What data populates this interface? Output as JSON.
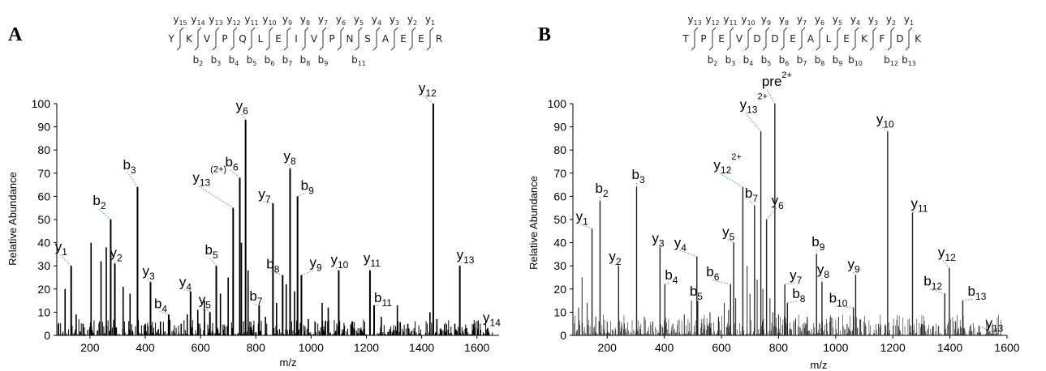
{
  "chart_data": [
    {
      "panel": "A",
      "type": "bar",
      "sequence": [
        "Y",
        "K",
        "V",
        "P",
        "Q",
        "L",
        "E",
        "I",
        "V",
        "P",
        "N",
        "S",
        "A",
        "E",
        "E",
        "R"
      ],
      "y_ions": [
        "y15",
        "y14",
        "y13",
        "y12",
        "y11",
        "y10",
        "y9",
        "y8",
        "y7",
        "y6",
        "y5",
        "y4",
        "y3",
        "y2",
        "y1"
      ],
      "b_ions": [
        "b2",
        "b3",
        "b4",
        "b5",
        "b6",
        "b7",
        "b8",
        "b9",
        "b11"
      ],
      "xlabel": "m/z",
      "ylabel": "Relative Abundance",
      "xlim": [
        80,
        1680
      ],
      "ylim": [
        0,
        100
      ],
      "xticks": [
        200,
        400,
        600,
        800,
        1000,
        1200,
        1400,
        1600
      ],
      "yticks": [
        0,
        10,
        20,
        30,
        40,
        50,
        60,
        70,
        80,
        90,
        100
      ],
      "annotated_peaks": [
        {
          "label": "y1",
          "mz": 132,
          "intensity": 30
        },
        {
          "label": "b2",
          "mz": 275,
          "intensity": 50
        },
        {
          "label": "y2",
          "mz": 290,
          "intensity": 31
        },
        {
          "label": "b3",
          "mz": 372,
          "intensity": 64
        },
        {
          "label": "y3",
          "mz": 419,
          "intensity": 23
        },
        {
          "label": "b4",
          "mz": 485,
          "intensity": 9
        },
        {
          "label": "y4",
          "mz": 564,
          "intensity": 19
        },
        {
          "label": "y5",
          "mz": 634,
          "intensity": 10
        },
        {
          "label": "b5",
          "mz": 657,
          "intensity": 30
        },
        {
          "label": "y13 (2+)",
          "mz": 718,
          "intensity": 55
        },
        {
          "label": "b6",
          "mz": 742,
          "intensity": 68
        },
        {
          "label": "y6",
          "mz": 763,
          "intensity": 93
        },
        {
          "label": "b7",
          "mz": 812,
          "intensity": 13
        },
        {
          "label": "y7",
          "mz": 862,
          "intensity": 57
        },
        {
          "label": "b8",
          "mz": 897,
          "intensity": 26
        },
        {
          "label": "y8",
          "mz": 924,
          "intensity": 72
        },
        {
          "label": "b9",
          "mz": 951,
          "intensity": 60
        },
        {
          "label": "y9",
          "mz": 965,
          "intensity": 26
        },
        {
          "label": "y10",
          "mz": 1100,
          "intensity": 28
        },
        {
          "label": "y11",
          "mz": 1213,
          "intensity": 28
        },
        {
          "label": "b11",
          "mz": 1228,
          "intensity": 13
        },
        {
          "label": "y12",
          "mz": 1442,
          "intensity": 100
        },
        {
          "label": "y13",
          "mz": 1538,
          "intensity": 30
        },
        {
          "label": "y14",
          "mz": 1639,
          "intensity": 3
        }
      ],
      "background_peaks": [
        {
          "mz": 110,
          "intensity": 20
        },
        {
          "mz": 150,
          "intensity": 9
        },
        {
          "mz": 175,
          "intensity": 5
        },
        {
          "mz": 204,
          "intensity": 40
        },
        {
          "mz": 240,
          "intensity": 32
        },
        {
          "mz": 259,
          "intensity": 38
        },
        {
          "mz": 320,
          "intensity": 21
        },
        {
          "mz": 345,
          "intensity": 18
        },
        {
          "mz": 400,
          "intensity": 5
        },
        {
          "mz": 455,
          "intensity": 6
        },
        {
          "mz": 530,
          "intensity": 5
        },
        {
          "mz": 552,
          "intensity": 9
        },
        {
          "mz": 590,
          "intensity": 11
        },
        {
          "mz": 614,
          "intensity": 15
        },
        {
          "mz": 672,
          "intensity": 18
        },
        {
          "mz": 700,
          "intensity": 25
        },
        {
          "mz": 748,
          "intensity": 40
        },
        {
          "mz": 772,
          "intensity": 28
        },
        {
          "mz": 835,
          "intensity": 8
        },
        {
          "mz": 875,
          "intensity": 14
        },
        {
          "mz": 910,
          "intensity": 22
        },
        {
          "mz": 940,
          "intensity": 19
        },
        {
          "mz": 990,
          "intensity": 7
        },
        {
          "mz": 1040,
          "intensity": 14
        },
        {
          "mz": 1062,
          "intensity": 12
        },
        {
          "mz": 1150,
          "intensity": 6
        },
        {
          "mz": 1254,
          "intensity": 8
        },
        {
          "mz": 1312,
          "intensity": 13
        },
        {
          "mz": 1350,
          "intensity": 5
        },
        {
          "mz": 1430,
          "intensity": 10
        },
        {
          "mz": 1455,
          "intensity": 7
        },
        {
          "mz": 1520,
          "intensity": 5
        },
        {
          "mz": 1560,
          "intensity": 3
        }
      ]
    },
    {
      "panel": "B",
      "type": "bar",
      "sequence": [
        "T",
        "P",
        "E",
        "V",
        "D",
        "D",
        "E",
        "A",
        "L",
        "E",
        "K",
        "F",
        "D",
        "K"
      ],
      "y_ions": [
        "y13",
        "y12",
        "y11",
        "y10",
        "y9",
        "y8",
        "y7",
        "y6",
        "y5",
        "y4",
        "y3",
        "y2",
        "y1"
      ],
      "b_ions": [
        "b2",
        "b3",
        "b4",
        "b5",
        "b6",
        "b7",
        "b8",
        "b9",
        "b10",
        "b12",
        "b13"
      ],
      "xlabel": "m/z",
      "ylabel": "Relative Abundance",
      "xlim": [
        80,
        1600
      ],
      "ylim": [
        0,
        100
      ],
      "xticks": [
        200,
        400,
        600,
        800,
        1000,
        1200,
        1400,
        1600
      ],
      "yticks": [
        0,
        10,
        20,
        30,
        40,
        50,
        60,
        70,
        80,
        90,
        100
      ],
      "annotated_peaks": [
        {
          "label": "y1",
          "mz": 147,
          "intensity": 46
        },
        {
          "label": "b2",
          "mz": 175,
          "intensity": 58
        },
        {
          "label": "y2",
          "mz": 240,
          "intensity": 30
        },
        {
          "label": "b3",
          "mz": 303,
          "intensity": 64
        },
        {
          "label": "y3",
          "mz": 385,
          "intensity": 38
        },
        {
          "label": "b4",
          "mz": 402,
          "intensity": 22
        },
        {
          "label": "y4",
          "mz": 514,
          "intensity": 34
        },
        {
          "label": "b5",
          "mz": 517,
          "intensity": 15
        },
        {
          "label": "b6",
          "mz": 632,
          "intensity": 22
        },
        {
          "label": "y5",
          "mz": 643,
          "intensity": 40
        },
        {
          "label": "y12 2+",
          "mz": 675,
          "intensity": 64
        },
        {
          "label": "b7",
          "mz": 716,
          "intensity": 56
        },
        {
          "label": "y13 2+",
          "mz": 738,
          "intensity": 88
        },
        {
          "label": "y6",
          "mz": 758,
          "intensity": 50
        },
        {
          "label": "pre 2+",
          "mz": 787,
          "intensity": 100
        },
        {
          "label": "y7",
          "mz": 822,
          "intensity": 22
        },
        {
          "label": "b8",
          "mz": 831,
          "intensity": 14
        },
        {
          "label": "b9",
          "mz": 933,
          "intensity": 35
        },
        {
          "label": "y8",
          "mz": 952,
          "intensity": 23
        },
        {
          "label": "b10",
          "mz": 1062,
          "intensity": 12
        },
        {
          "label": "y9",
          "mz": 1070,
          "intensity": 26
        },
        {
          "label": "y10",
          "mz": 1182,
          "intensity": 88
        },
        {
          "label": "y11",
          "mz": 1269,
          "intensity": 53
        },
        {
          "label": "b12",
          "mz": 1382,
          "intensity": 18
        },
        {
          "label": "y12",
          "mz": 1398,
          "intensity": 29
        },
        {
          "label": "b13",
          "mz": 1445,
          "intensity": 15
        },
        {
          "label": "y13",
          "mz": 1502,
          "intensity": 4
        }
      ],
      "background_peaks": [
        {
          "mz": 100,
          "intensity": 12
        },
        {
          "mz": 112,
          "intensity": 25
        },
        {
          "mz": 130,
          "intensity": 14
        },
        {
          "mz": 160,
          "intensity": 8
        },
        {
          "mz": 200,
          "intensity": 6
        },
        {
          "mz": 260,
          "intensity": 5
        },
        {
          "mz": 330,
          "intensity": 8
        },
        {
          "mz": 360,
          "intensity": 6
        },
        {
          "mz": 430,
          "intensity": 5
        },
        {
          "mz": 470,
          "intensity": 9
        },
        {
          "mz": 495,
          "intensity": 15
        },
        {
          "mz": 560,
          "intensity": 10
        },
        {
          "mz": 590,
          "intensity": 8
        },
        {
          "mz": 610,
          "intensity": 14
        },
        {
          "mz": 625,
          "intensity": 11
        },
        {
          "mz": 650,
          "intensity": 16
        },
        {
          "mz": 690,
          "intensity": 30
        },
        {
          "mz": 700,
          "intensity": 18
        },
        {
          "mz": 725,
          "intensity": 24
        },
        {
          "mz": 745,
          "intensity": 20
        },
        {
          "mz": 770,
          "intensity": 16
        },
        {
          "mz": 780,
          "intensity": 10
        },
        {
          "mz": 800,
          "intensity": 9
        },
        {
          "mz": 860,
          "intensity": 7
        },
        {
          "mz": 900,
          "intensity": 8
        },
        {
          "mz": 980,
          "intensity": 6
        },
        {
          "mz": 1010,
          "intensity": 8
        },
        {
          "mz": 1040,
          "intensity": 5
        },
        {
          "mz": 1100,
          "intensity": 4
        },
        {
          "mz": 1150,
          "intensity": 5
        },
        {
          "mz": 1220,
          "intensity": 4
        },
        {
          "mz": 1300,
          "intensity": 5
        },
        {
          "mz": 1340,
          "intensity": 4
        },
        {
          "mz": 1420,
          "intensity": 6
        },
        {
          "mz": 1470,
          "intensity": 4
        },
        {
          "mz": 1540,
          "intensity": 2
        }
      ]
    }
  ]
}
